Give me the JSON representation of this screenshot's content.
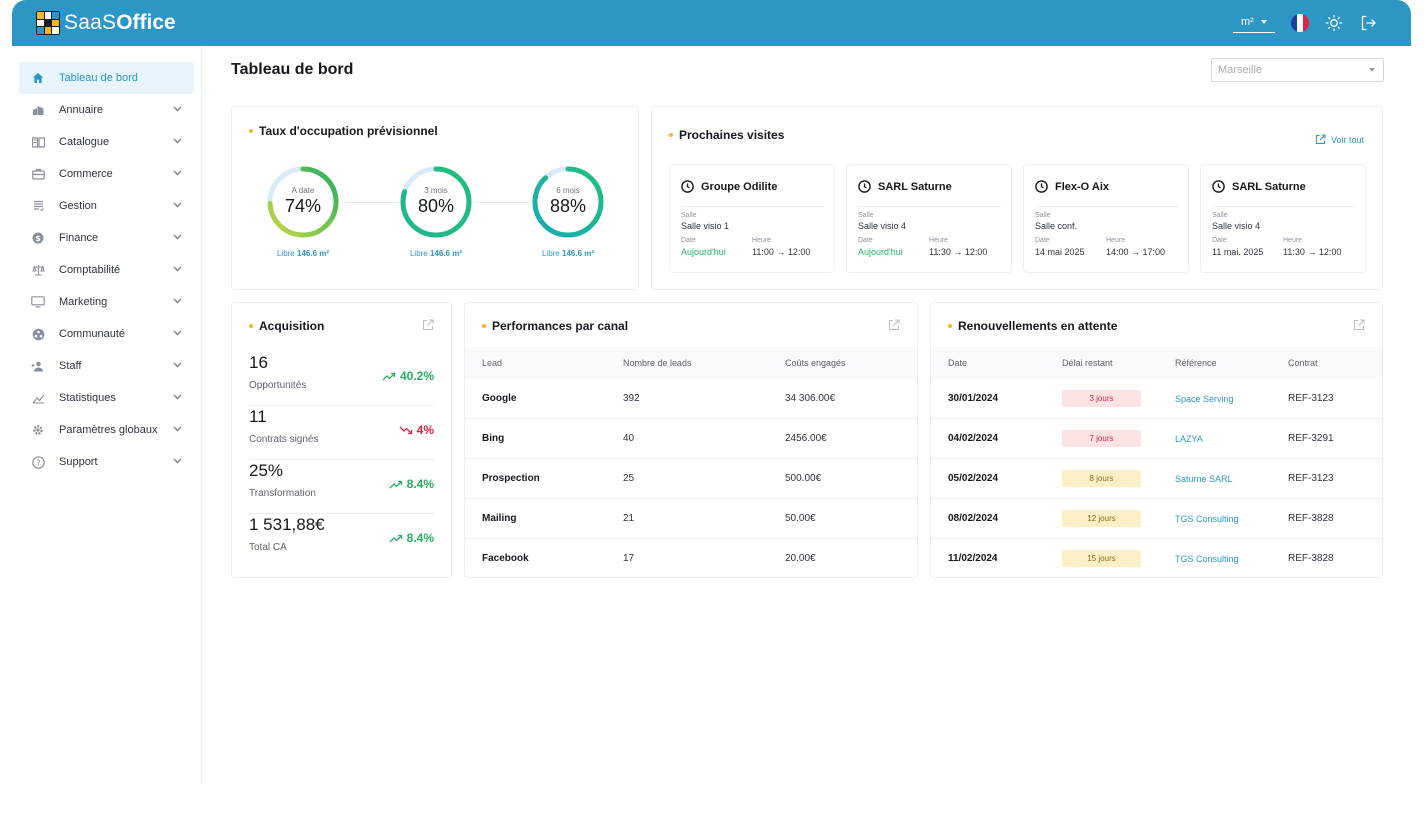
{
  "header": {
    "logo_light": "SaaS",
    "logo_bold": "Office",
    "unit": "m²",
    "colors": {
      "bar": "#2c97c4",
      "accent": "#f5b825"
    }
  },
  "sidebar": {
    "items": [
      {
        "label": "Tableau de bord",
        "icon": "home-icon",
        "active": true
      },
      {
        "label": "Annuaire",
        "icon": "buildings-icon"
      },
      {
        "label": "Catalogue",
        "icon": "book-icon"
      },
      {
        "label": "Commerce",
        "icon": "briefcase-icon"
      },
      {
        "label": "Gestion",
        "icon": "list-icon"
      },
      {
        "label": "Finance",
        "icon": "dollar-icon"
      },
      {
        "label": "Comptabilité",
        "icon": "scale-icon"
      },
      {
        "label": "Marketing",
        "icon": "monitor-icon"
      },
      {
        "label": "Communauté",
        "icon": "community-icon"
      },
      {
        "label": "Staff",
        "icon": "add-user-icon"
      },
      {
        "label": "Statistiques",
        "icon": "chart-icon"
      },
      {
        "label": "Paramètres globaux",
        "icon": "gear-icon"
      },
      {
        "label": "Support",
        "icon": "help-icon"
      }
    ]
  },
  "main": {
    "title": "Tableau de bord",
    "city_placeholder": "Marseille"
  },
  "occupancy": {
    "title": "Taux d'occupation prévisionnel",
    "gauges": [
      {
        "label": "A date",
        "value": "74%",
        "fraction": 0.74,
        "free_prefix": "Libre",
        "free_value": "146.6 m²"
      },
      {
        "label": "3 mois",
        "value": "80%",
        "fraction": 0.8,
        "free_prefix": "Libre",
        "free_value": "146.6 m²"
      },
      {
        "label": "6 mois",
        "value": "88%",
        "fraction": 0.88,
        "free_prefix": "Libre",
        "free_value": "146.6 m²"
      }
    ]
  },
  "visits": {
    "title": "Prochaines visites",
    "see_all": "Voir tout",
    "salle_label": "Salle",
    "date_label": "Date",
    "time_label": "Heure",
    "items": [
      {
        "name": "Groupe Odilite",
        "room": "Salle visio 1",
        "date": "Aujourd'hui",
        "time": "11:00 → 12:00",
        "today": true
      },
      {
        "name": "SARL Saturne",
        "room": "Salle visio 4",
        "date": "Aujourd'hui",
        "time": "11:30 → 12:00",
        "today": true
      },
      {
        "name": "Flex-O Aix",
        "room": "Salle conf.",
        "date": "14 mai 2025",
        "time": "14:00 → 17:00",
        "today": false
      },
      {
        "name": "SARL Saturne",
        "room": "Salle visio 4",
        "date": "11 mai. 2025",
        "time": "11:30 → 12:00",
        "today": false
      }
    ]
  },
  "acquisition": {
    "title": "Acquisition",
    "kpis": [
      {
        "value": "16",
        "label": "Opportunités",
        "trend": "40.2%",
        "direction": "up"
      },
      {
        "value": "11",
        "label": "Contrats signés",
        "trend": "4%",
        "direction": "down"
      },
      {
        "value": "25%",
        "label": "Transformation",
        "trend": "8.4%",
        "direction": "up"
      },
      {
        "value": "1 531,88€",
        "label": "Total CA",
        "trend": "8.4%",
        "direction": "up"
      }
    ]
  },
  "channels": {
    "title": "Performances par canal",
    "columns": [
      "Lead",
      "Nombre de leads",
      "Coûts engagés"
    ],
    "rows": [
      {
        "lead": "Google",
        "count": "392",
        "cost": "34 306.00€"
      },
      {
        "lead": "Bing",
        "count": "40",
        "cost": "2456.00€"
      },
      {
        "lead": "Prospection",
        "count": "25",
        "cost": "500.00€"
      },
      {
        "lead": "Mailing",
        "count": "21",
        "cost": "50.00€"
      },
      {
        "lead": "Facebook",
        "count": "17",
        "cost": "20.00€"
      }
    ]
  },
  "renewals": {
    "title": "Renouvellements en attente",
    "columns": [
      "Date",
      "Délai restant",
      "Référence",
      "Contrat"
    ],
    "rows": [
      {
        "date": "30/01/2024",
        "delay": "3 jours",
        "level": "red",
        "reference": "Space Serving",
        "contract": "REF-3123"
      },
      {
        "date": "04/02/2024",
        "delay": "7 jours",
        "level": "red",
        "reference": "LAZYA",
        "contract": "REF-3291"
      },
      {
        "date": "05/02/2024",
        "delay": "8 jours",
        "level": "yellow",
        "reference": "Saturne SARL",
        "contract": "REF-3123"
      },
      {
        "date": "08/02/2024",
        "delay": "12 jours",
        "level": "yellow",
        "reference": "TGS Consulting",
        "contract": "REF-3828"
      },
      {
        "date": "11/02/2024",
        "delay": "15 jours",
        "level": "yellow",
        "reference": "TGS Consulting",
        "contract": "REF-3828"
      }
    ]
  }
}
